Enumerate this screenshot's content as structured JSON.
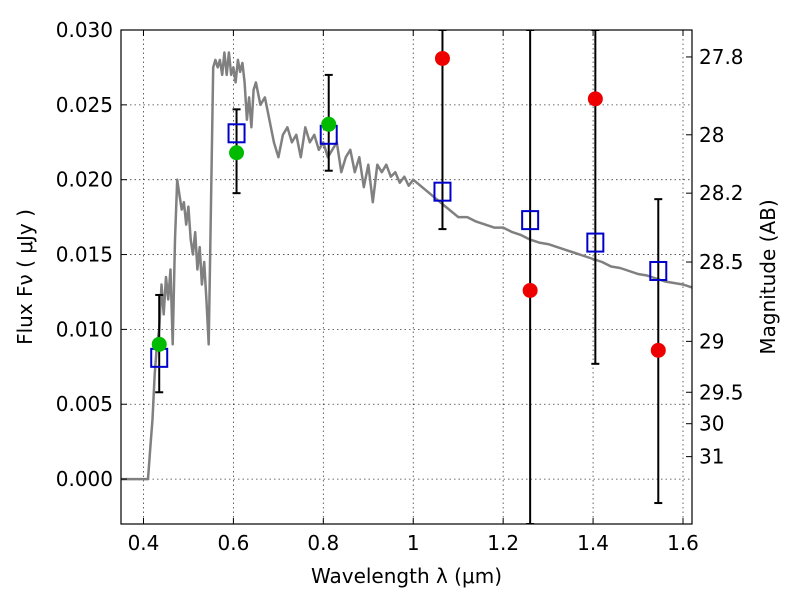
{
  "chart_data": {
    "type": "scatter",
    "xlabel": "Wavelength  λ (μm)",
    "ylabel": "Flux  Fν  ( μJy )",
    "ylabel_right": "Magnitude (AB)",
    "xlim": [
      0.35,
      1.62
    ],
    "ylim": [
      -0.003,
      0.03
    ],
    "x_ticks": [
      0.4,
      0.6,
      0.8,
      1.0,
      1.2,
      1.4,
      1.6
    ],
    "x_tick_labels": [
      "0.4",
      "0.6",
      "0.8",
      "1",
      "1.2",
      "1.4",
      "1.6"
    ],
    "y_ticks": [
      0.0,
      0.005,
      0.01,
      0.015,
      0.02,
      0.025,
      0.03
    ],
    "y_tick_labels": [
      "0.000",
      "0.005",
      "0.010",
      "0.015",
      "0.020",
      "0.025",
      "0.030"
    ],
    "right_ticks": [
      {
        "flux": 0.0282,
        "label": "27.8"
      },
      {
        "flux": 0.023,
        "label": "28"
      },
      {
        "flux": 0.0191,
        "label": "28.2"
      },
      {
        "flux": 0.0145,
        "label": "28.5"
      },
      {
        "flux": 0.0092,
        "label": "29"
      },
      {
        "flux": 0.0058,
        "label": "29.5"
      },
      {
        "flux": 0.0037,
        "label": "30"
      },
      {
        "flux": 0.0015,
        "label": "31"
      }
    ],
    "grid": true,
    "colors": {
      "model": "#808080",
      "open_square": "#0000cc",
      "green": "#00bb00",
      "red": "#ee0000",
      "errorbar": "#000000"
    },
    "series": [
      {
        "kind": "line",
        "x": [
          0.35,
          0.4,
          0.41,
          0.415,
          0.42,
          0.425,
          0.43,
          0.435,
          0.44,
          0.445,
          0.45,
          0.455,
          0.46,
          0.465,
          0.47,
          0.475,
          0.48,
          0.485,
          0.49,
          0.495,
          0.5,
          0.505,
          0.51,
          0.515,
          0.52,
          0.525,
          0.53,
          0.535,
          0.54,
          0.545,
          0.55,
          0.555,
          0.56,
          0.565,
          0.57,
          0.575,
          0.58,
          0.585,
          0.59,
          0.595,
          0.6,
          0.605,
          0.61,
          0.615,
          0.62,
          0.625,
          0.63,
          0.635,
          0.64,
          0.645,
          0.65,
          0.66,
          0.67,
          0.68,
          0.69,
          0.7,
          0.71,
          0.72,
          0.73,
          0.74,
          0.75,
          0.76,
          0.77,
          0.78,
          0.79,
          0.8,
          0.81,
          0.82,
          0.83,
          0.84,
          0.85,
          0.86,
          0.87,
          0.88,
          0.89,
          0.9,
          0.91,
          0.92,
          0.93,
          0.94,
          0.95,
          0.96,
          0.97,
          0.98,
          0.99,
          1.0,
          1.02,
          1.04,
          1.06,
          1.08,
          1.1,
          1.12,
          1.14,
          1.16,
          1.18,
          1.2,
          1.22,
          1.24,
          1.26,
          1.28,
          1.3,
          1.32,
          1.34,
          1.36,
          1.38,
          1.4,
          1.42,
          1.44,
          1.46,
          1.48,
          1.5,
          1.52,
          1.54,
          1.56,
          1.58,
          1.6,
          1.62
        ],
        "y": [
          0.0,
          0.0,
          0.0,
          0.002,
          0.004,
          0.007,
          0.009,
          0.01,
          0.013,
          0.011,
          0.0135,
          0.012,
          0.014,
          0.009,
          0.016,
          0.02,
          0.019,
          0.018,
          0.0185,
          0.017,
          0.0182,
          0.016,
          0.015,
          0.0165,
          0.014,
          0.0155,
          0.013,
          0.0145,
          0.012,
          0.009,
          0.018,
          0.0275,
          0.028,
          0.0275,
          0.028,
          0.027,
          0.0285,
          0.027,
          0.0285,
          0.027,
          0.0275,
          0.0265,
          0.028,
          0.0272,
          0.0278,
          0.0265,
          0.024,
          0.0255,
          0.0235,
          0.026,
          0.0265,
          0.025,
          0.0255,
          0.024,
          0.0225,
          0.0215,
          0.023,
          0.0235,
          0.0225,
          0.023,
          0.0215,
          0.0235,
          0.0225,
          0.023,
          0.022,
          0.0225,
          0.0215,
          0.022,
          0.0225,
          0.0205,
          0.0215,
          0.022,
          0.0205,
          0.0215,
          0.0195,
          0.021,
          0.0185,
          0.021,
          0.0205,
          0.021,
          0.0202,
          0.0205,
          0.0198,
          0.0202,
          0.0196,
          0.02,
          0.0195,
          0.019,
          0.0185,
          0.018,
          0.0175,
          0.0175,
          0.0172,
          0.017,
          0.0168,
          0.0168,
          0.0165,
          0.0163,
          0.016,
          0.0158,
          0.0157,
          0.0155,
          0.0153,
          0.0151,
          0.0149,
          0.0147,
          0.0145,
          0.0142,
          0.0141,
          0.0139,
          0.0137,
          0.0136,
          0.0134,
          0.0132,
          0.0131,
          0.013,
          0.0128
        ]
      },
      {
        "kind": "open-square",
        "x": [
          0.435,
          0.607,
          0.812,
          1.065,
          1.26,
          1.405,
          1.545
        ],
        "y": [
          0.0081,
          0.0231,
          0.023,
          0.0192,
          0.0173,
          0.0158,
          0.0139
        ]
      },
      {
        "kind": "filled-circle-green",
        "x": [
          0.435,
          0.607,
          0.812
        ],
        "y": [
          0.009,
          0.0218,
          0.0237
        ],
        "err_low": [
          0.0058,
          0.0191,
          0.0206
        ],
        "err_high": [
          0.0123,
          0.0247,
          0.027
        ]
      },
      {
        "kind": "filled-circle-red",
        "x": [
          1.065,
          1.26,
          1.405,
          1.545
        ],
        "y": [
          0.0281,
          0.0126,
          0.0254,
          0.0086
        ],
        "err_low": [
          0.0167,
          -0.003,
          0.0077,
          -0.0016
        ],
        "err_high": [
          0.03,
          0.03,
          0.03,
          0.0187
        ]
      }
    ]
  }
}
